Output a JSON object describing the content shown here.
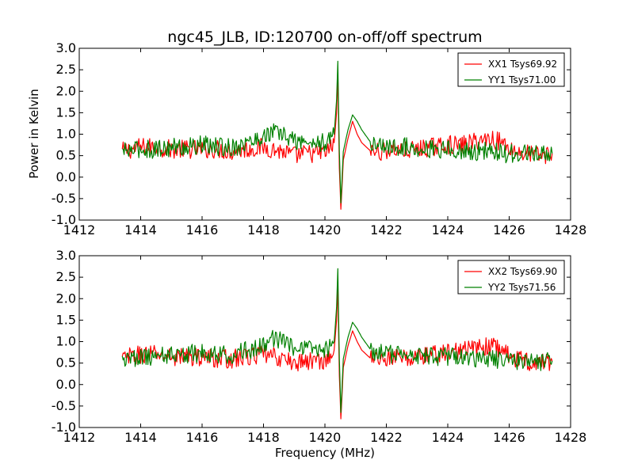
{
  "figure": {
    "title": "ngc45_JLB, ID:120700 on-off/off spectrum",
    "xlabel": "Frequency (MHz)",
    "ylabel_top": "Power in Kelvin"
  },
  "chart_data": [
    {
      "type": "line",
      "xlim": [
        1412,
        1428
      ],
      "ylim": [
        -1.0,
        3.0
      ],
      "x_ticks": [
        1412,
        1414,
        1416,
        1418,
        1420,
        1422,
        1424,
        1426,
        1428
      ],
      "y_ticks": [
        -1.0,
        -0.5,
        0.0,
        0.5,
        1.0,
        1.5,
        2.0,
        2.5,
        3.0
      ],
      "grid": false,
      "legend_position": "top-right",
      "series": [
        {
          "name": "XX1 Tsys69.92",
          "color": "#ff0000",
          "x": [
            1413.4,
            1414.0,
            1414.5,
            1415.0,
            1415.5,
            1416.0,
            1416.5,
            1417.0,
            1417.5,
            1418.0,
            1418.3,
            1418.6,
            1419.0,
            1419.4,
            1419.8,
            1420.1,
            1420.3,
            1420.38,
            1420.42,
            1420.47,
            1420.52,
            1420.6,
            1420.75,
            1420.9,
            1421.05,
            1421.2,
            1421.35,
            1421.5,
            1421.8,
            1422.2,
            1422.6,
            1423.0,
            1423.5,
            1424.0,
            1424.5,
            1425.0,
            1425.4,
            1425.8,
            1426.2,
            1426.6,
            1427.0,
            1427.4
          ],
          "y": [
            0.6,
            0.7,
            0.7,
            0.65,
            0.65,
            0.65,
            0.65,
            0.6,
            0.65,
            0.7,
            0.65,
            0.6,
            0.5,
            0.55,
            0.55,
            0.6,
            0.8,
            1.5,
            2.4,
            0.2,
            -0.75,
            0.4,
            0.9,
            1.3,
            1.0,
            0.8,
            0.7,
            0.6,
            0.6,
            0.65,
            0.6,
            0.65,
            0.7,
            0.75,
            0.75,
            0.85,
            0.9,
            0.8,
            0.6,
            0.55,
            0.5,
            0.55
          ]
        },
        {
          "name": "YY1 Tsys71.00",
          "color": "#008000",
          "x": [
            1413.4,
            1414.0,
            1414.5,
            1415.0,
            1415.5,
            1416.0,
            1416.5,
            1417.0,
            1417.5,
            1418.0,
            1418.3,
            1418.6,
            1419.0,
            1419.4,
            1419.8,
            1420.1,
            1420.3,
            1420.38,
            1420.42,
            1420.47,
            1420.52,
            1420.6,
            1420.75,
            1420.9,
            1421.05,
            1421.2,
            1421.35,
            1421.5,
            1421.8,
            1422.2,
            1422.6,
            1423.0,
            1423.5,
            1424.0,
            1424.5,
            1425.0,
            1425.4,
            1425.8,
            1426.2,
            1426.6,
            1427.0,
            1427.4
          ],
          "y": [
            0.6,
            0.65,
            0.65,
            0.7,
            0.7,
            0.75,
            0.7,
            0.7,
            0.8,
            0.95,
            1.05,
            1.0,
            0.85,
            0.8,
            0.8,
            0.8,
            1.0,
            1.8,
            2.7,
            0.6,
            -0.6,
            0.6,
            1.1,
            1.45,
            1.3,
            1.1,
            0.95,
            0.8,
            0.75,
            0.7,
            0.7,
            0.7,
            0.65,
            0.65,
            0.6,
            0.6,
            0.6,
            0.55,
            0.55,
            0.55,
            0.5,
            0.55
          ]
        }
      ]
    },
    {
      "type": "line",
      "xlim": [
        1412,
        1428
      ],
      "ylim": [
        -1.0,
        3.0
      ],
      "x_ticks": [
        1412,
        1414,
        1416,
        1418,
        1420,
        1422,
        1424,
        1426,
        1428
      ],
      "y_ticks": [
        -1.0,
        -0.5,
        0.0,
        0.5,
        1.0,
        1.5,
        2.0,
        2.5,
        3.0
      ],
      "grid": false,
      "legend_position": "top-right",
      "series": [
        {
          "name": "XX2 Tsys69.90",
          "color": "#ff0000",
          "x": [
            1413.4,
            1414.0,
            1414.5,
            1415.0,
            1415.5,
            1416.0,
            1416.5,
            1417.0,
            1417.5,
            1418.0,
            1418.3,
            1418.6,
            1419.0,
            1419.4,
            1419.8,
            1420.1,
            1420.3,
            1420.38,
            1420.42,
            1420.47,
            1420.52,
            1420.6,
            1420.75,
            1420.9,
            1421.05,
            1421.2,
            1421.35,
            1421.5,
            1421.8,
            1422.2,
            1422.6,
            1423.0,
            1423.5,
            1424.0,
            1424.5,
            1425.0,
            1425.4,
            1425.8,
            1426.2,
            1426.6,
            1427.0,
            1427.4
          ],
          "y": [
            0.6,
            0.7,
            0.7,
            0.65,
            0.65,
            0.65,
            0.6,
            0.6,
            0.65,
            0.7,
            0.65,
            0.6,
            0.5,
            0.55,
            0.55,
            0.6,
            0.8,
            1.5,
            2.3,
            0.2,
            -0.8,
            0.4,
            0.9,
            1.25,
            1.0,
            0.8,
            0.7,
            0.6,
            0.6,
            0.65,
            0.6,
            0.65,
            0.7,
            0.75,
            0.8,
            0.85,
            0.9,
            0.8,
            0.6,
            0.55,
            0.5,
            0.55
          ]
        },
        {
          "name": "YY2 Tsys71.56",
          "color": "#008000",
          "x": [
            1413.4,
            1414.0,
            1414.5,
            1415.0,
            1415.5,
            1416.0,
            1416.5,
            1417.0,
            1417.5,
            1418.0,
            1418.3,
            1418.6,
            1419.0,
            1419.4,
            1419.8,
            1420.1,
            1420.3,
            1420.38,
            1420.42,
            1420.47,
            1420.52,
            1420.6,
            1420.75,
            1420.9,
            1421.05,
            1421.2,
            1421.35,
            1421.5,
            1421.8,
            1422.2,
            1422.6,
            1423.0,
            1423.5,
            1424.0,
            1424.5,
            1425.0,
            1425.4,
            1425.8,
            1426.2,
            1426.6,
            1427.0,
            1427.4
          ],
          "y": [
            0.6,
            0.65,
            0.65,
            0.7,
            0.7,
            0.75,
            0.7,
            0.7,
            0.8,
            0.95,
            1.05,
            1.0,
            0.85,
            0.8,
            0.8,
            0.8,
            1.0,
            1.8,
            2.7,
            0.6,
            -0.65,
            0.6,
            1.1,
            1.45,
            1.3,
            1.1,
            0.95,
            0.8,
            0.75,
            0.7,
            0.7,
            0.7,
            0.65,
            0.65,
            0.6,
            0.6,
            0.6,
            0.55,
            0.55,
            0.55,
            0.5,
            0.55
          ]
        }
      ]
    }
  ]
}
